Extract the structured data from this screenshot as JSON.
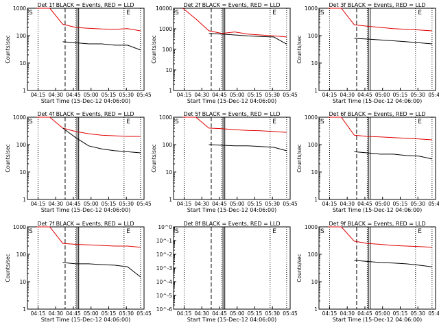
{
  "chart_data": [
    {
      "type": "line",
      "title": "Det 1f BLACK = Events, RED = LLD",
      "ylabel": "Counts/sec",
      "xlabel": "Start Time (15-Dec-12 04:06:00)",
      "x_ticks": [
        "04:15",
        "04:30",
        "04:45",
        "05:00",
        "05:15",
        "05:30",
        "05:45"
      ],
      "y_ticks": [
        "1",
        "10",
        "100",
        "1000"
      ],
      "y_scale": "log",
      "ylim": [
        1,
        1000
      ],
      "markers": [
        "S",
        "E"
      ],
      "series": [
        {
          "name": "RED",
          "color": "#e00000",
          "values": [
            1000,
            1000,
            260,
            200,
            185,
            175,
            170,
            180,
            150
          ]
        },
        {
          "name": "BLACK",
          "color": "#000000",
          "values": [
            null,
            null,
            60,
            55,
            50,
            50,
            45,
            45,
            30
          ]
        }
      ]
    },
    {
      "type": "line",
      "title": "Det 2f BLACK = Events, RED = LLD",
      "ylabel": "Counts/sec",
      "xlabel": "Start Time (15-Dec-12 04:06:00)",
      "x_ticks": [
        "04:15",
        "04:30",
        "04:45",
        "05:00",
        "05:15",
        "05:30",
        "05:45"
      ],
      "y_ticks": [
        "1",
        "10",
        "100",
        "1000",
        "10000"
      ],
      "y_scale": "log",
      "ylim": [
        1,
        10000
      ],
      "markers": [
        "S",
        "E"
      ],
      "series": [
        {
          "name": "RED",
          "color": "#e00000",
          "values": [
            10000,
            3000,
            800,
            600,
            700,
            550,
            500,
            450,
            400
          ]
        },
        {
          "name": "BLACK",
          "color": "#000000",
          "values": [
            null,
            null,
            600,
            550,
            500,
            450,
            420,
            400,
            180
          ]
        }
      ]
    },
    {
      "type": "line",
      "title": "Det 3f BLACK = Events, RED = LLD",
      "ylabel": "Counts/sec",
      "xlabel": "Start Time (15-Dec-12 04:06:00)",
      "x_ticks": [
        "04:15",
        "04:30",
        "04:45",
        "05:00",
        "05:15",
        "05:30",
        "05:45"
      ],
      "y_ticks": [
        "1",
        "10",
        "100",
        "1000"
      ],
      "y_scale": "log",
      "ylim": [
        1,
        1000
      ],
      "markers": [
        "S",
        "E"
      ],
      "series": [
        {
          "name": "RED",
          "color": "#e00000",
          "values": [
            1000,
            1000,
            250,
            220,
            200,
            180,
            170,
            160,
            150
          ]
        },
        {
          "name": "BLACK",
          "color": "#000000",
          "values": [
            null,
            null,
            80,
            75,
            70,
            65,
            60,
            55,
            50
          ]
        }
      ]
    },
    {
      "type": "line",
      "title": "Det 4f BLACK = Events, RED = LLD",
      "ylabel": "Counts/sec",
      "xlabel": "Start Time (15-Dec-12 04:06:00)",
      "x_ticks": [
        "04:15",
        "04:30",
        "04:45",
        "05:00",
        "05:15",
        "05:30",
        "05:45"
      ],
      "y_ticks": [
        "1",
        "10",
        "100",
        "1000"
      ],
      "y_scale": "log",
      "ylim": [
        1,
        1000
      ],
      "markers": [
        "S",
        "E"
      ],
      "series": [
        {
          "name": "RED",
          "color": "#e00000",
          "values": [
            1000,
            1000,
            400,
            300,
            250,
            220,
            210,
            200,
            200
          ]
        },
        {
          "name": "BLACK",
          "color": "#000000",
          "values": [
            null,
            null,
            400,
            180,
            90,
            70,
            60,
            55,
            50
          ]
        }
      ]
    },
    {
      "type": "line",
      "title": "Det 5f BLACK = Events, RED = LLD",
      "ylabel": "Counts/sec",
      "xlabel": "Start Time (15-Dec-12 04:06:00)",
      "x_ticks": [
        "04:15",
        "04:30",
        "04:45",
        "05:00",
        "05:15",
        "05:30",
        "05:45"
      ],
      "y_ticks": [
        "1",
        "10",
        "100",
        "1000"
      ],
      "y_scale": "log",
      "ylim": [
        1,
        1000
      ],
      "markers": [
        "S",
        "E"
      ],
      "series": [
        {
          "name": "RED",
          "color": "#e00000",
          "values": [
            1000,
            1000,
            400,
            380,
            350,
            330,
            320,
            300,
            280
          ]
        },
        {
          "name": "BLACK",
          "color": "#000000",
          "values": [
            null,
            null,
            100,
            95,
            90,
            90,
            85,
            80,
            60
          ]
        }
      ]
    },
    {
      "type": "line",
      "title": "Det 6f BLACK = Events, RED = LLD",
      "ylabel": "Counts/sec",
      "xlabel": "Start Time (15-Dec-12 04:06:00)",
      "x_ticks": [
        "04:15",
        "04:30",
        "04:45",
        "05:00",
        "05:15",
        "05:30",
        "05:45"
      ],
      "y_ticks": [
        "1",
        "10",
        "100",
        "1000"
      ],
      "y_scale": "log",
      "ylim": [
        1,
        1000
      ],
      "markers": [
        "S",
        "E"
      ],
      "series": [
        {
          "name": "RED",
          "color": "#e00000",
          "values": [
            1000,
            1000,
            220,
            200,
            190,
            180,
            170,
            160,
            150
          ]
        },
        {
          "name": "BLACK",
          "color": "#000000",
          "values": [
            null,
            null,
            55,
            50,
            45,
            45,
            40,
            38,
            30
          ]
        }
      ]
    },
    {
      "type": "line",
      "title": "Det 7f BLACK = Events, RED = LLD",
      "ylabel": "Counts/sec",
      "xlabel": "Start Time (15-Dec-12 04:06:00)",
      "x_ticks": [
        "04:15",
        "04:30",
        "04:45",
        "05:00",
        "05:15",
        "05:30",
        "05:45"
      ],
      "y_ticks": [
        "1",
        "10",
        "100",
        "1000"
      ],
      "y_scale": "log",
      "ylim": [
        1,
        1000
      ],
      "markers": [
        "S",
        "E"
      ],
      "series": [
        {
          "name": "RED",
          "color": "#e00000",
          "values": [
            1000,
            1000,
            250,
            230,
            220,
            210,
            200,
            200,
            180
          ]
        },
        {
          "name": "BLACK",
          "color": "#000000",
          "values": [
            null,
            null,
            50,
            45,
            45,
            42,
            40,
            35,
            15
          ]
        }
      ]
    },
    {
      "type": "line",
      "title": "Det 8f BLACK = Events, RED = LLD",
      "ylabel": "",
      "xlabel": "Start Time (15-Dec-12 04:06:00)",
      "x_ticks": [
        "04:15",
        "04:30",
        "04:45",
        "05:00",
        "05:15",
        "05:30",
        "05:45"
      ],
      "y_ticks": [
        "10^-6",
        "10^-5",
        "10^-4",
        "10^-3",
        "10^-2",
        "10^-1",
        "10^0"
      ],
      "y_scale": "log",
      "ylim": [
        1e-06,
        1
      ],
      "markers": [
        "S",
        "E"
      ],
      "series": []
    },
    {
      "type": "line",
      "title": "Det 9f BLACK = Events, RED = LLD",
      "ylabel": "Counts/sec",
      "xlabel": "Start Time (15-Dec-12 04:06:00)",
      "x_ticks": [
        "04:15",
        "04:30",
        "04:45",
        "05:00",
        "05:15",
        "05:30",
        "05:45"
      ],
      "y_ticks": [
        "1",
        "10",
        "100",
        "1000"
      ],
      "y_scale": "log",
      "ylim": [
        1,
        1000
      ],
      "markers": [
        "S",
        "E"
      ],
      "series": [
        {
          "name": "RED",
          "color": "#e00000",
          "values": [
            1000,
            1000,
            300,
            250,
            230,
            210,
            200,
            190,
            180
          ]
        },
        {
          "name": "BLACK",
          "color": "#000000",
          "values": [
            null,
            null,
            60,
            55,
            50,
            48,
            45,
            40,
            35
          ]
        }
      ]
    }
  ]
}
